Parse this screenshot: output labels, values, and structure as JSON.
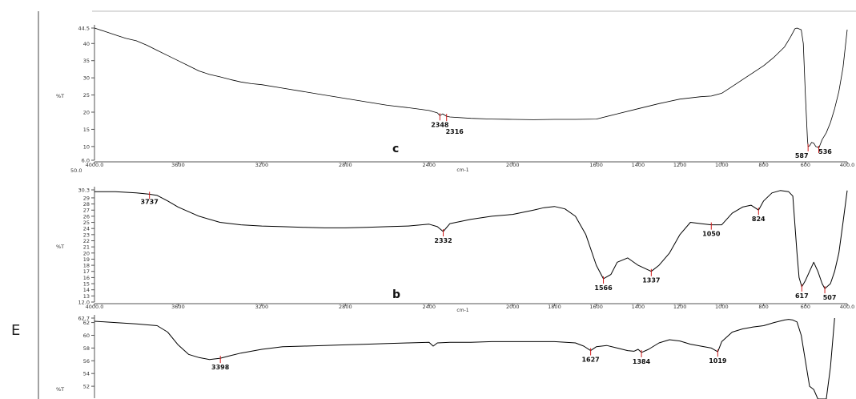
{
  "side_label": "E",
  "chart_data": [
    {
      "type": "line",
      "panel_letter": "c",
      "ylabel": "%T",
      "xlabel": "cm-1",
      "xlim": [
        4000,
        400
      ],
      "ylim": [
        6.0,
        44.5
      ],
      "x_ticks": [
        "4000.0",
        "3600",
        "3200",
        "2800",
        "2400",
        "2000",
        "1600",
        "1400",
        "1200",
        "1000",
        "800",
        "600",
        "400.0"
      ],
      "y_ticks": [
        "44.5",
        "40",
        "35",
        "30",
        "25",
        "20",
        "15",
        "10",
        "6.0"
      ],
      "extra_text": "50.0",
      "series": [
        {
          "x": [
            4000,
            3950,
            3900,
            3850,
            3800,
            3750,
            3700,
            3650,
            3600,
            3550,
            3500,
            3450,
            3400,
            3350,
            3300,
            3250,
            3200,
            3100,
            3000,
            2900,
            2800,
            2700,
            2600,
            2500,
            2400,
            2360,
            2348,
            2335,
            2316,
            2300,
            2200,
            2100,
            2000,
            1900,
            1800,
            1700,
            1600,
            1500,
            1400,
            1300,
            1200,
            1100,
            1050,
            1000,
            950,
            900,
            850,
            800,
            750,
            700,
            670,
            650,
            640,
            620,
            610,
            600,
            590,
            587,
            580,
            570,
            560,
            550,
            540,
            536,
            520,
            500,
            480,
            460,
            440,
            420,
            400
          ],
          "y": [
            44.5,
            43.5,
            42.5,
            41.5,
            40.8,
            39.5,
            38,
            36.5,
            35,
            33.5,
            32,
            31,
            30.3,
            29.5,
            28.8,
            28.3,
            28,
            27,
            26,
            25,
            24,
            23,
            22,
            21.3,
            20.5,
            19.8,
            19,
            19.5,
            18.8,
            18.6,
            18.2,
            18,
            17.9,
            17.8,
            17.9,
            17.9,
            18,
            19.5,
            21,
            22.5,
            23.8,
            24.5,
            24.7,
            25.5,
            27.5,
            29.5,
            31.5,
            33.5,
            36,
            39,
            42,
            44.3,
            44.5,
            44,
            40,
            25,
            12,
            10,
            10.2,
            11.2,
            11,
            10,
            9.8,
            9.5,
            12,
            14,
            17,
            21,
            26,
            33,
            44
          ]
        }
      ],
      "peaks": [
        {
          "x": 2348,
          "label": "2348"
        },
        {
          "x": 2316,
          "label": "2316"
        },
        {
          "x": 587,
          "label": "587"
        },
        {
          "x": 536,
          "label": "536"
        }
      ]
    },
    {
      "type": "line",
      "panel_letter": "b",
      "ylabel": "%T",
      "xlabel": "cm-1",
      "xlim": [
        4000,
        400
      ],
      "ylim": [
        12.0,
        30.3
      ],
      "x_ticks": [
        "4000.0",
        "3600",
        "3200",
        "2800",
        "2400",
        "2000",
        "1800",
        "1600",
        "1400",
        "1200",
        "1000",
        "800",
        "600",
        "400.0"
      ],
      "y_ticks": [
        "30.3",
        "29",
        "28",
        "27",
        "26",
        "25",
        "24",
        "23",
        "22",
        "21",
        "20",
        "19",
        "18",
        "17",
        "16",
        "15",
        "14",
        "13",
        "12.0"
      ],
      "series": [
        {
          "x": [
            4000,
            3900,
            3800,
            3737,
            3700,
            3650,
            3600,
            3500,
            3400,
            3300,
            3200,
            3100,
            3000,
            2900,
            2800,
            2700,
            2600,
            2500,
            2400,
            2360,
            2332,
            2300,
            2200,
            2100,
            2000,
            1900,
            1850,
            1800,
            1750,
            1700,
            1650,
            1600,
            1566,
            1530,
            1500,
            1450,
            1400,
            1337,
            1300,
            1250,
            1200,
            1150,
            1100,
            1050,
            1000,
            950,
            900,
            860,
            824,
            800,
            760,
            720,
            680,
            660,
            640,
            630,
            617,
            600,
            580,
            560,
            540,
            520,
            507,
            480,
            460,
            440,
            420,
            400
          ],
          "y": [
            30,
            30,
            29.8,
            29.6,
            29.4,
            28.5,
            27.5,
            26,
            25,
            24.6,
            24.4,
            24.3,
            24.2,
            24.1,
            24.1,
            24.2,
            24.3,
            24.4,
            24.7,
            24.3,
            23.5,
            24.8,
            25.5,
            26,
            26.3,
            27,
            27.4,
            27.6,
            27.2,
            26,
            23,
            18,
            15.8,
            16.5,
            18.5,
            19.2,
            18,
            17,
            18,
            20,
            23,
            25,
            24.8,
            24.6,
            24.6,
            26.5,
            27.5,
            27.8,
            27,
            28.5,
            29.8,
            30.2,
            30,
            29.3,
            20,
            16,
            14.5,
            15.5,
            17,
            18.5,
            17,
            15,
            14.2,
            15,
            17,
            20,
            25,
            30.2
          ]
        }
      ],
      "peaks": [
        {
          "x": 3737,
          "label": "3737"
        },
        {
          "x": 2332,
          "label": "2332"
        },
        {
          "x": 1566,
          "label": "1566"
        },
        {
          "x": 1337,
          "label": "1337"
        },
        {
          "x": 1050,
          "label": "1050"
        },
        {
          "x": 824,
          "label": "824"
        },
        {
          "x": 617,
          "label": "617"
        },
        {
          "x": 507,
          "label": "507"
        }
      ]
    },
    {
      "type": "line",
      "panel_letter": "",
      "ylabel": "%T",
      "xlabel": "",
      "xlim": [
        4000,
        400
      ],
      "ylim": [
        50.0,
        62.7
      ],
      "x_ticks": [],
      "y_ticks": [
        "62.7",
        "62",
        "60",
        "58",
        "56",
        "54",
        "52"
      ],
      "series": [
        {
          "x": [
            4000,
            3900,
            3800,
            3700,
            3650,
            3600,
            3550,
            3500,
            3450,
            3398,
            3350,
            3300,
            3200,
            3100,
            3000,
            2900,
            2800,
            2700,
            2600,
            2500,
            2400,
            2380,
            2360,
            2300,
            2200,
            2100,
            2000,
            1900,
            1800,
            1700,
            1660,
            1627,
            1600,
            1550,
            1500,
            1450,
            1420,
            1400,
            1384,
            1350,
            1300,
            1250,
            1200,
            1150,
            1100,
            1050,
            1019,
            1000,
            950,
            900,
            850,
            800,
            750,
            700,
            680,
            660,
            640,
            620,
            600,
            580,
            560,
            540,
            520,
            500,
            480,
            460
          ],
          "y": [
            62.2,
            62,
            61.8,
            61.5,
            60.5,
            58.5,
            57,
            56.5,
            56.2,
            56.4,
            56.8,
            57.2,
            57.8,
            58.2,
            58.3,
            58.4,
            58.5,
            58.6,
            58.7,
            58.8,
            58.9,
            58.3,
            58.8,
            58.9,
            58.9,
            59,
            59,
            59,
            59,
            58.8,
            58.3,
            57.6,
            58.2,
            58.4,
            58,
            57.6,
            57.5,
            57.8,
            57.3,
            57.8,
            58.8,
            59.3,
            59.1,
            58.6,
            58.3,
            58,
            57.4,
            59,
            60.5,
            61,
            61.3,
            61.5,
            62,
            62.4,
            62.5,
            62.4,
            62.1,
            60,
            56,
            52,
            51.5,
            50,
            49,
            50,
            55,
            62.7
          ]
        }
      ],
      "peaks": [
        {
          "x": 3398,
          "label": "3398"
        },
        {
          "x": 1627,
          "label": "1627"
        },
        {
          "x": 1384,
          "label": "1384"
        },
        {
          "x": 1019,
          "label": "1019"
        }
      ]
    }
  ]
}
